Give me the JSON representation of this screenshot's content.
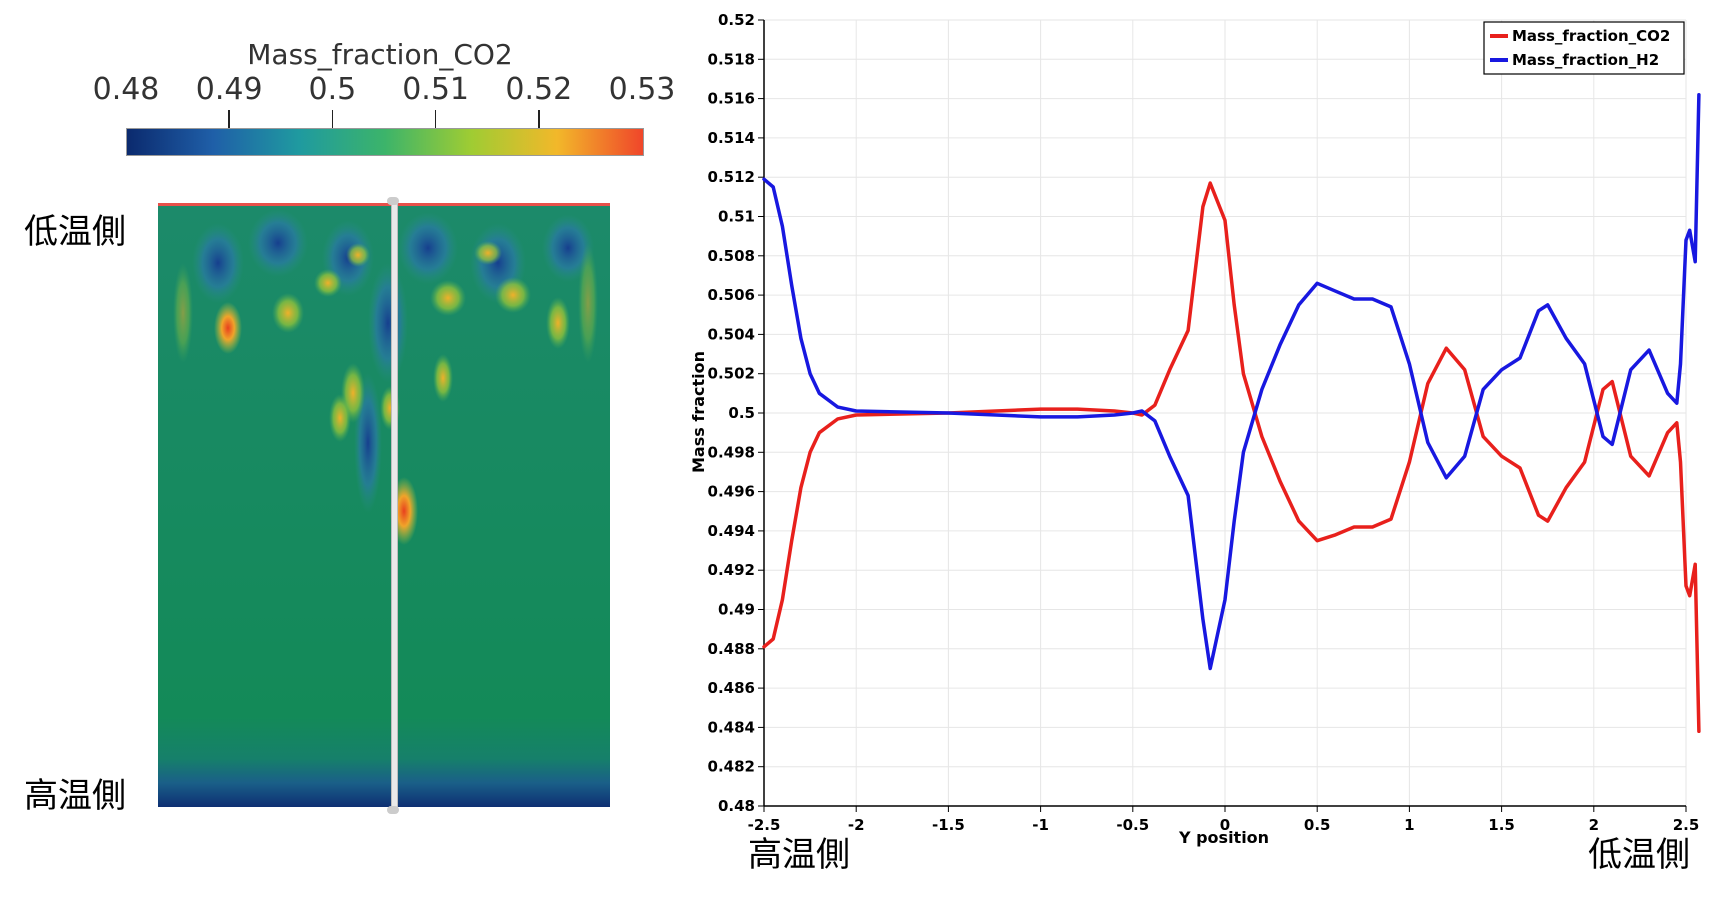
{
  "side_labels": {
    "left_top": "低温側",
    "left_bottom": "高温側",
    "chart_left": "高温側",
    "chart_right": "低温側"
  },
  "colorbar": {
    "title": "Mass_fraction_CO2",
    "ticks": [
      "0.48",
      "0.49",
      "0.5",
      "0.51",
      "0.52",
      "0.53"
    ],
    "range": [
      0.48,
      0.53
    ],
    "colors": [
      "#0b2a6e",
      "#1f5fa8",
      "#1f9aa0",
      "#3cb46a",
      "#9fcc33",
      "#f2b82a",
      "#f0462a"
    ]
  },
  "chart_data": {
    "type": "line",
    "xlabel": "Y position",
    "ylabel": "Mass fraction",
    "xlim": [
      -2.5,
      2.5
    ],
    "ylim": [
      0.48,
      0.52
    ],
    "x_ticks": [
      "-2.5",
      "-2",
      "-1.5",
      "-1",
      "-0.5",
      "0",
      "0.5",
      "1",
      "1.5",
      "2",
      "2.5"
    ],
    "y_ticks": [
      "0.48",
      "0.482",
      "0.484",
      "0.486",
      "0.488",
      "0.49",
      "0.492",
      "0.494",
      "0.496",
      "0.498",
      "0.5",
      "0.502",
      "0.504",
      "0.506",
      "0.508",
      "0.51",
      "0.512",
      "0.514",
      "0.516",
      "0.518",
      "0.52"
    ],
    "grid": true,
    "legend_position": "top-right",
    "series": [
      {
        "name": "Mass_fraction_CO2",
        "color": "#e8201c",
        "points": [
          [
            -2.5,
            0.4881
          ],
          [
            -2.45,
            0.4885
          ],
          [
            -2.4,
            0.4905
          ],
          [
            -2.35,
            0.4935
          ],
          [
            -2.3,
            0.4962
          ],
          [
            -2.25,
            0.498
          ],
          [
            -2.2,
            0.499
          ],
          [
            -2.1,
            0.4997
          ],
          [
            -2.0,
            0.4999
          ],
          [
            -1.5,
            0.5
          ],
          [
            -1.0,
            0.5002
          ],
          [
            -0.8,
            0.5002
          ],
          [
            -0.6,
            0.5001
          ],
          [
            -0.5,
            0.5
          ],
          [
            -0.45,
            0.4999
          ],
          [
            -0.38,
            0.5004
          ],
          [
            -0.3,
            0.5022
          ],
          [
            -0.2,
            0.5042
          ],
          [
            -0.12,
            0.5105
          ],
          [
            -0.08,
            0.5117
          ],
          [
            0.0,
            0.5098
          ],
          [
            0.05,
            0.5055
          ],
          [
            0.1,
            0.502
          ],
          [
            0.2,
            0.4988
          ],
          [
            0.3,
            0.4965
          ],
          [
            0.4,
            0.4945
          ],
          [
            0.5,
            0.4935
          ],
          [
            0.6,
            0.4938
          ],
          [
            0.7,
            0.4942
          ],
          [
            0.8,
            0.4942
          ],
          [
            0.9,
            0.4946
          ],
          [
            1.0,
            0.4975
          ],
          [
            1.1,
            0.5015
          ],
          [
            1.2,
            0.5033
          ],
          [
            1.3,
            0.5022
          ],
          [
            1.4,
            0.4988
          ],
          [
            1.5,
            0.4978
          ],
          [
            1.6,
            0.4972
          ],
          [
            1.7,
            0.4948
          ],
          [
            1.75,
            0.4945
          ],
          [
            1.85,
            0.4962
          ],
          [
            1.95,
            0.4975
          ],
          [
            2.05,
            0.5012
          ],
          [
            2.1,
            0.5016
          ],
          [
            2.2,
            0.4978
          ],
          [
            2.3,
            0.4968
          ],
          [
            2.4,
            0.499
          ],
          [
            2.45,
            0.4995
          ],
          [
            2.47,
            0.4975
          ],
          [
            2.5,
            0.4912
          ],
          [
            2.52,
            0.4907
          ],
          [
            2.55,
            0.4923
          ],
          [
            2.57,
            0.4838
          ]
        ]
      },
      {
        "name": "Mass_fraction_H2",
        "color": "#1818e0",
        "points": [
          [
            -2.5,
            0.5119
          ],
          [
            -2.45,
            0.5115
          ],
          [
            -2.4,
            0.5095
          ],
          [
            -2.35,
            0.5065
          ],
          [
            -2.3,
            0.5038
          ],
          [
            -2.25,
            0.502
          ],
          [
            -2.2,
            0.501
          ],
          [
            -2.1,
            0.5003
          ],
          [
            -2.0,
            0.5001
          ],
          [
            -1.5,
            0.5
          ],
          [
            -1.0,
            0.4998
          ],
          [
            -0.8,
            0.4998
          ],
          [
            -0.6,
            0.4999
          ],
          [
            -0.5,
            0.5
          ],
          [
            -0.45,
            0.5001
          ],
          [
            -0.38,
            0.4996
          ],
          [
            -0.3,
            0.4978
          ],
          [
            -0.2,
            0.4958
          ],
          [
            -0.12,
            0.4895
          ],
          [
            -0.08,
            0.487
          ],
          [
            0.0,
            0.4905
          ],
          [
            0.05,
            0.4945
          ],
          [
            0.1,
            0.498
          ],
          [
            0.2,
            0.5012
          ],
          [
            0.3,
            0.5035
          ],
          [
            0.4,
            0.5055
          ],
          [
            0.5,
            0.5066
          ],
          [
            0.6,
            0.5062
          ],
          [
            0.7,
            0.5058
          ],
          [
            0.8,
            0.5058
          ],
          [
            0.9,
            0.5054
          ],
          [
            1.0,
            0.5025
          ],
          [
            1.1,
            0.4985
          ],
          [
            1.2,
            0.4967
          ],
          [
            1.3,
            0.4978
          ],
          [
            1.4,
            0.5012
          ],
          [
            1.5,
            0.5022
          ],
          [
            1.6,
            0.5028
          ],
          [
            1.7,
            0.5052
          ],
          [
            1.75,
            0.5055
          ],
          [
            1.85,
            0.5038
          ],
          [
            1.95,
            0.5025
          ],
          [
            2.05,
            0.4988
          ],
          [
            2.1,
            0.4984
          ],
          [
            2.2,
            0.5022
          ],
          [
            2.3,
            0.5032
          ],
          [
            2.4,
            0.501
          ],
          [
            2.45,
            0.5005
          ],
          [
            2.47,
            0.5025
          ],
          [
            2.5,
            0.5088
          ],
          [
            2.52,
            0.5093
          ],
          [
            2.55,
            0.5077
          ],
          [
            2.57,
            0.5162
          ]
        ]
      }
    ]
  }
}
